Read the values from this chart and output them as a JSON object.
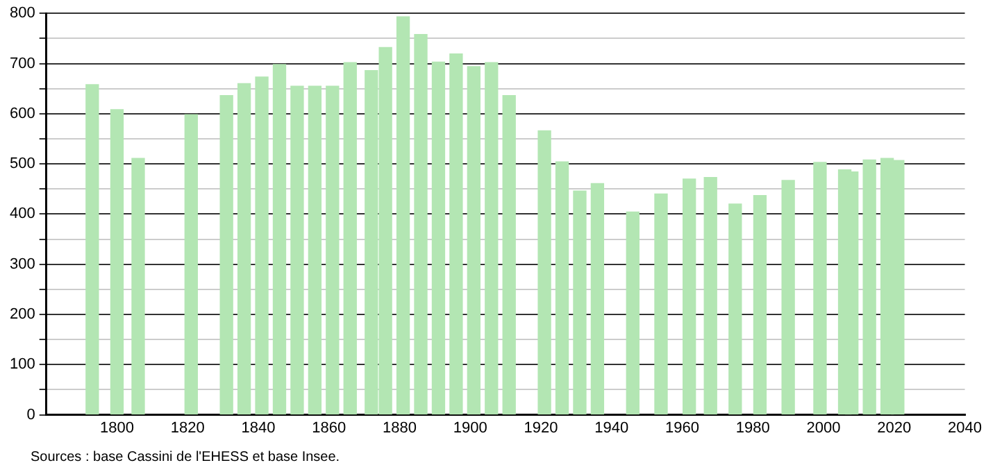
{
  "chart_data": {
    "type": "bar",
    "x": [
      1793,
      1800,
      1806,
      1821,
      1831,
      1836,
      1841,
      1846,
      1851,
      1856,
      1861,
      1866,
      1872,
      1876,
      1881,
      1886,
      1891,
      1896,
      1901,
      1906,
      1911,
      1921,
      1926,
      1931,
      1936,
      1946,
      1954,
      1962,
      1968,
      1975,
      1982,
      1990,
      1999,
      2006,
      2008,
      2013,
      2018,
      2021
    ],
    "values": [
      658,
      608,
      511,
      598,
      636,
      660,
      673,
      698,
      655,
      655,
      655,
      702,
      686,
      732,
      793,
      758,
      703,
      719,
      694,
      702,
      636,
      566,
      504,
      446,
      461,
      404,
      440,
      470,
      473,
      420,
      437,
      467,
      503,
      488,
      484,
      508,
      511,
      507
    ],
    "color": "#b3e6b3",
    "xlim": [
      1780,
      2040
    ],
    "xticks": [
      1800,
      1820,
      1840,
      1860,
      1880,
      1900,
      1920,
      1940,
      1960,
      1980,
      2000,
      2020,
      2040
    ],
    "ylim": [
      0,
      800
    ],
    "yticks": [
      0,
      {
        "value": 50,
        "label": null
      },
      100,
      {
        "value": 150,
        "label": null
      },
      200,
      {
        "value": 250,
        "label": null
      },
      300,
      {
        "value": 350,
        "label": null
      },
      400,
      {
        "value": 450,
        "label": null
      },
      500,
      {
        "value": 550,
        "label": null
      },
      600,
      {
        "value": 650,
        "label": null
      },
      700,
      {
        "value": 750,
        "label": null
      },
      800
    ],
    "grid": "y",
    "annotations": [
      "Sources : base Cassini de l'EHESS et base Insee."
    ]
  }
}
